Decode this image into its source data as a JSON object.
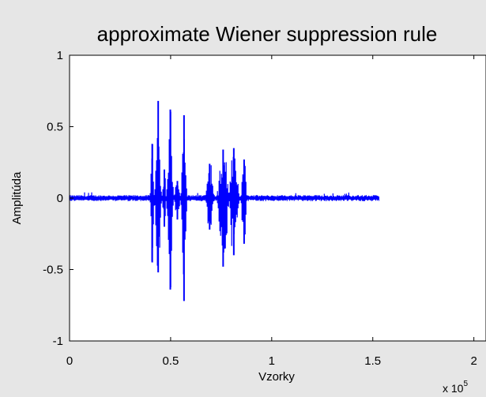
{
  "chart_data": {
    "type": "line",
    "title": "approximate Wiener suppression rule",
    "xlabel": "Vzorky",
    "ylabel": "Amplitúda",
    "xlim": [
      0,
      200000
    ],
    "ylim": [
      -1,
      1
    ],
    "x_multiplier_label": "x 10",
    "x_multiplier_exponent": "5",
    "x_ticks": [
      {
        "value": 0,
        "label": "0"
      },
      {
        "value": 50000,
        "label": "0.5"
      },
      {
        "value": 100000,
        "label": "1"
      },
      {
        "value": 150000,
        "label": "1.5"
      },
      {
        "value": 200000,
        "label": "2"
      }
    ],
    "y_ticks": [
      {
        "value": 1,
        "label": "1"
      },
      {
        "value": 0.5,
        "label": "0.5"
      },
      {
        "value": 0,
        "label": "0"
      },
      {
        "value": -0.5,
        "label": "-0.5"
      },
      {
        "value": -1,
        "label": "-1"
      }
    ],
    "grid": false,
    "series": [
      {
        "color": "#0000ff",
        "sample_count": 153000,
        "noise_floor": 0.015,
        "bursts": [
          {
            "start": 40000,
            "end": 42000,
            "max": 0.38,
            "min": -0.45
          },
          {
            "start": 42500,
            "end": 45500,
            "max": 0.68,
            "min": -0.52
          },
          {
            "start": 46000,
            "end": 48000,
            "max": 0.2,
            "min": -0.2
          },
          {
            "start": 48500,
            "end": 51500,
            "max": 0.62,
            "min": -0.64
          },
          {
            "start": 52000,
            "end": 55000,
            "max": 0.12,
            "min": -0.15
          },
          {
            "start": 55500,
            "end": 58000,
            "max": 0.58,
            "min": -0.72
          },
          {
            "start": 67500,
            "end": 71500,
            "max": 0.24,
            "min": -0.22
          },
          {
            "start": 73500,
            "end": 79000,
            "max": 0.34,
            "min": -0.48
          },
          {
            "start": 79000,
            "end": 84000,
            "max": 0.35,
            "min": -0.4
          },
          {
            "start": 85000,
            "end": 88000,
            "max": 0.27,
            "min": -0.32
          }
        ]
      }
    ]
  }
}
